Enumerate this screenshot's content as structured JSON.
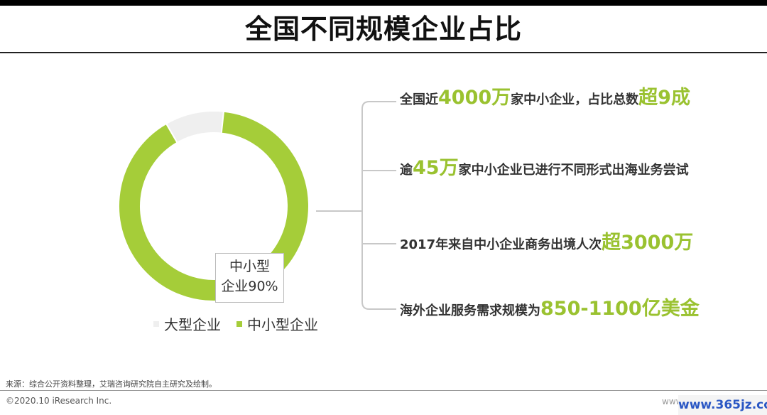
{
  "title": "全国不同规模企业占比",
  "chart_data": {
    "type": "pie",
    "title": "全国不同规模企业占比",
    "categories": [
      "大型企业",
      "中小型企业"
    ],
    "values": [
      10,
      90
    ],
    "colors": [
      "#efefef",
      "#a5cd39"
    ],
    "tooltip": {
      "line1": "中小型",
      "line2": "企业90%"
    },
    "legend_position": "bottom"
  },
  "statements": [
    {
      "pre": "全国近",
      "hl1": "4000万",
      "mid": "家中小企业，占比总数",
      "hl2": "超9成",
      "post": ""
    },
    {
      "pre": "逾",
      "hl1": "45万",
      "mid": "家中小企业已进行不同形式出海业务尝试",
      "hl2": "",
      "post": ""
    },
    {
      "pre": "2017年来自中小企业商务出境人次",
      "hl1": "超3000万",
      "mid": "",
      "hl2": "",
      "post": ""
    },
    {
      "pre": "海外企业服务需求规模为",
      "hl1": "850-1100亿美金",
      "mid": "",
      "hl2": "",
      "post": ""
    }
  ],
  "colors": {
    "accent": "#9ac230",
    "text": "#333333"
  },
  "footer": {
    "source": "来源：综合公开资料整理，艾瑞咨询研究院自主研究及绘制。",
    "copyright": "©2020.10 iResearch Inc.",
    "url": "www.iresearch.com.cn",
    "watermark": "www.365jz.com"
  }
}
